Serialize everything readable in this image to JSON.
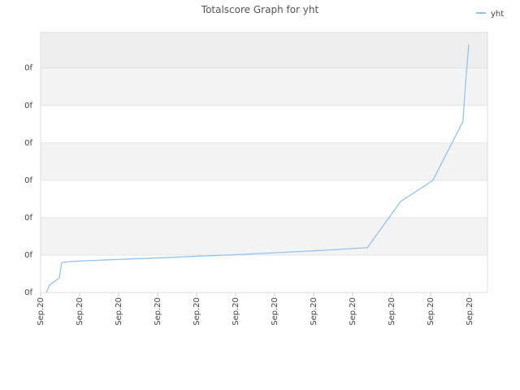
{
  "chart_data": {
    "type": "line",
    "title": "Totalscore Graph for yht",
    "x": [
      0.15,
      0.23,
      0.48,
      0.54,
      0.79,
      1.67,
      3.13,
      5.21,
      7.29,
      8.38,
      9.23,
      10.06,
      10.83,
      10.9,
      10.98
    ],
    "series": [
      {
        "name": "yht",
        "color": "#90c4ee",
        "values": [
          0,
          0.2,
          0.39,
          0.8,
          0.83,
          0.87,
          0.93,
          1.02,
          1.13,
          1.2,
          2.43,
          3.0,
          4.57,
          5.63,
          6.63
        ]
      }
    ],
    "xlim": [
      0,
      11.46
    ],
    "xticks": [
      {
        "value": 0,
        "label": "Sep.20"
      },
      {
        "value": 1,
        "label": "Sep.20"
      },
      {
        "value": 2,
        "label": "Sep.20"
      },
      {
        "value": 3,
        "label": "Sep.20"
      },
      {
        "value": 4,
        "label": "Sep.20"
      },
      {
        "value": 5,
        "label": "Sep.20"
      },
      {
        "value": 6,
        "label": "Sep.20"
      },
      {
        "value": 7,
        "label": "Sep.20"
      },
      {
        "value": 8,
        "label": "Sep.20"
      },
      {
        "value": 9,
        "label": "Sep.20"
      },
      {
        "value": 10,
        "label": "Sep.20"
      },
      {
        "value": 11,
        "label": "Sep.20"
      }
    ],
    "ylim": [
      0,
      6.95
    ],
    "yticks": [
      {
        "value": 0,
        "label": "0f"
      },
      {
        "value": 1,
        "label": "0f"
      },
      {
        "value": 2,
        "label": "0f"
      },
      {
        "value": 3,
        "label": "0f"
      },
      {
        "value": 4,
        "label": "0f"
      },
      {
        "value": 5,
        "label": "0f"
      },
      {
        "value": 6,
        "label": "0f"
      }
    ],
    "grid": true,
    "legend": "top-right"
  }
}
